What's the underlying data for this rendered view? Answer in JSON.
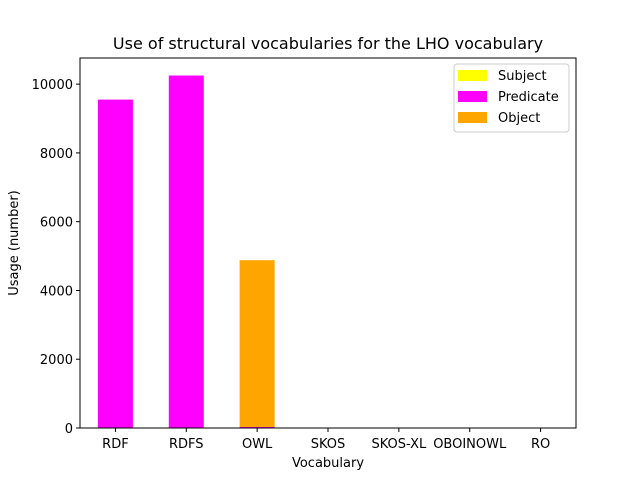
{
  "chart_data": {
    "type": "bar",
    "title": "Use of structural vocabularies for the LHO vocabulary",
    "xlabel": "Vocabulary",
    "ylabel": "Usage (number)",
    "categories": [
      "RDF",
      "RDFS",
      "OWL",
      "SKOS",
      "SKOS-XL",
      "OBOINOWL",
      "RO"
    ],
    "series": [
      {
        "name": "Subject",
        "color": "#ffff00",
        "values": [
          0,
          0,
          0,
          0,
          0,
          0,
          0
        ]
      },
      {
        "name": "Predicate",
        "color": "#ff00ff",
        "values": [
          9550,
          10250,
          30,
          0,
          0,
          0,
          0
        ]
      },
      {
        "name": "Object",
        "color": "#ffa500",
        "values": [
          0,
          0,
          4850,
          0,
          0,
          0,
          0
        ]
      }
    ],
    "stacked": true,
    "ylim": [
      0,
      10760
    ],
    "yticks": [
      0,
      2000,
      4000,
      6000,
      8000,
      10000
    ],
    "legend": "top-right",
    "grid": false
  }
}
